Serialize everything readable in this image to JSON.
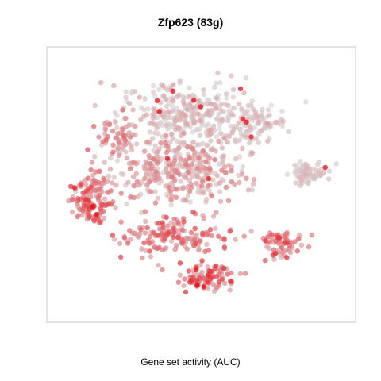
{
  "chart_data": {
    "type": "scatter",
    "title": "Zfp623 (83g)",
    "xlabel": "Gene set activity (AUC)",
    "ylabel": "",
    "grid": false,
    "legend": "none",
    "colors": {
      "low": "#d9d9d9",
      "high": "#e8000b",
      "border": "#c8c8c8"
    },
    "point_count": 1400,
    "regions": [
      {
        "name": "top-upper-lobe",
        "center": [
          0.45,
          0.78
        ],
        "spread": [
          0.22,
          0.09
        ],
        "weight": 0.22,
        "activity": [
          0.0,
          0.25
        ]
      },
      {
        "name": "upper-right-lobe",
        "center": [
          0.68,
          0.73
        ],
        "spread": [
          0.08,
          0.06
        ],
        "weight": 0.06,
        "activity": [
          0.0,
          0.2
        ]
      },
      {
        "name": "central-body",
        "center": [
          0.43,
          0.56
        ],
        "spread": [
          0.2,
          0.12
        ],
        "weight": 0.28,
        "activity": [
          0.05,
          0.45
        ]
      },
      {
        "name": "left-lobe",
        "center": [
          0.13,
          0.45
        ],
        "spread": [
          0.07,
          0.1
        ],
        "weight": 0.1,
        "activity": [
          0.25,
          0.75
        ]
      },
      {
        "name": "lower-body",
        "center": [
          0.4,
          0.31
        ],
        "spread": [
          0.17,
          0.07
        ],
        "weight": 0.12,
        "activity": [
          0.2,
          0.7
        ]
      },
      {
        "name": "bottom-bulb",
        "center": [
          0.52,
          0.15
        ],
        "spread": [
          0.09,
          0.05
        ],
        "weight": 0.07,
        "activity": [
          0.25,
          0.8
        ]
      },
      {
        "name": "right-satellite",
        "center": [
          0.86,
          0.55
        ],
        "spread": [
          0.06,
          0.04
        ],
        "weight": 0.06,
        "activity": [
          0.0,
          0.2
        ]
      },
      {
        "name": "right-lower-satellite",
        "center": [
          0.76,
          0.28
        ],
        "spread": [
          0.06,
          0.05
        ],
        "weight": 0.05,
        "activity": [
          0.2,
          0.8
        ]
      },
      {
        "name": "left-upper-arm",
        "center": [
          0.22,
          0.68
        ],
        "spread": [
          0.06,
          0.06
        ],
        "weight": 0.04,
        "activity": [
          0.15,
          0.55
        ]
      }
    ]
  }
}
